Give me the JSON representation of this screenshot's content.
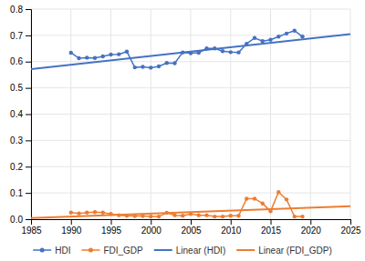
{
  "chart_data": {
    "type": "line",
    "series": [
      {
        "name": "HDI",
        "color": "#4472C4",
        "marker": "circle",
        "line_style": "solid",
        "x": [
          1990,
          1991,
          1992,
          1993,
          1994,
          1995,
          1996,
          1997,
          1998,
          1999,
          2000,
          2001,
          2002,
          2003,
          2004,
          2005,
          2006,
          2007,
          2008,
          2009,
          2010,
          2011,
          2012,
          2013,
          2014,
          2015,
          2016,
          2017,
          2018,
          2019
        ],
        "values": [
          0.634,
          0.613,
          0.615,
          0.614,
          0.62,
          0.627,
          0.628,
          0.638,
          0.578,
          0.58,
          0.577,
          0.582,
          0.595,
          0.594,
          0.635,
          0.632,
          0.634,
          0.65,
          0.65,
          0.64,
          0.636,
          0.635,
          0.668,
          0.69,
          0.678,
          0.683,
          0.695,
          0.707,
          0.718,
          0.695
        ]
      },
      {
        "name": "FDI_GDP",
        "color": "#ED7D31",
        "marker": "circle",
        "line_style": "solid",
        "x": [
          1990,
          1991,
          1992,
          1993,
          1994,
          1995,
          1996,
          1997,
          1998,
          1999,
          2000,
          2001,
          2002,
          2003,
          2004,
          2005,
          2006,
          2007,
          2008,
          2009,
          2010,
          2011,
          2012,
          2013,
          2014,
          2015,
          2016,
          2017,
          2018,
          2019
        ],
        "values": [
          0.025,
          0.022,
          0.025,
          0.027,
          0.025,
          0.02,
          0.015,
          0.013,
          0.012,
          0.012,
          0.01,
          0.01,
          0.024,
          0.015,
          0.013,
          0.02,
          0.015,
          0.015,
          0.01,
          0.01,
          0.013,
          0.013,
          0.078,
          0.078,
          0.06,
          0.03,
          0.103,
          0.075,
          0.01,
          0.01
        ]
      },
      {
        "name": "Linear (HDI)",
        "color": "#4472C4",
        "marker": "none",
        "line_style": "solid",
        "x": [
          1985,
          2025
        ],
        "values": [
          0.571421,
          0.704646
        ]
      },
      {
        "name": "Linear (FDI_GDP)",
        "color": "#ED7D31",
        "marker": "none",
        "line_style": "solid",
        "x": [
          1985,
          2025
        ],
        "values": [
          0.004653,
          0.049214
        ]
      }
    ],
    "xlim": [
      1985,
      2025
    ],
    "ylim": [
      0,
      0.8
    ],
    "xticks": [
      1985,
      1990,
      1995,
      2000,
      2005,
      2010,
      2015,
      2020,
      2025
    ],
    "yticks": [
      {
        "value": 0,
        "label": "0.0"
      },
      0.1,
      0.2,
      0.3,
      0.4,
      0.5,
      0.6,
      0.7,
      0.8
    ],
    "grid": true,
    "legend": "bottom"
  }
}
